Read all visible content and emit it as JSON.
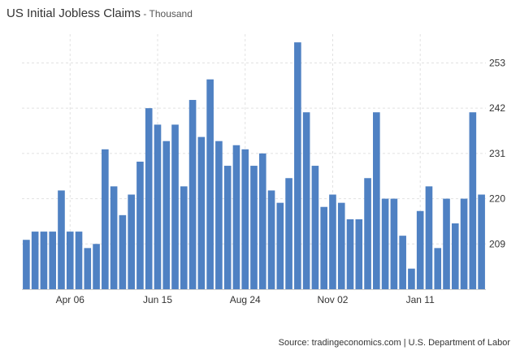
{
  "title": "US Initial Jobless Claims",
  "subtitle_sep": " - ",
  "subtitle": "Thousand",
  "source": "Source: tradingeconomics.com | U.S. Department of Labor",
  "colors": {
    "bar": "#4f81c3",
    "grid": "#e1e1e1",
    "axis": "#cccccc",
    "text": "#333333"
  },
  "chart_data": {
    "type": "bar",
    "title": "US Initial Jobless Claims",
    "ylabel": "Thousand",
    "xlabel": "",
    "ylim": [
      198,
      260
    ],
    "y_ticks": [
      209,
      220,
      231,
      242,
      253
    ],
    "y_tick_labels": [
      "209",
      "220",
      "231",
      "242",
      "253"
    ],
    "x_tick_labels": [
      {
        "label": "Apr 06",
        "index": 5
      },
      {
        "label": "Jun 15",
        "index": 15
      },
      {
        "label": "Aug 24",
        "index": 25
      },
      {
        "label": "Nov 02",
        "index": 35
      },
      {
        "label": "Jan 11",
        "index": 45
      }
    ],
    "grid": true,
    "values": [
      210,
      212,
      212,
      212,
      222,
      212,
      212,
      208,
      209,
      232,
      223,
      216,
      221,
      229,
      242,
      238,
      234,
      238,
      223,
      244,
      235,
      249,
      234,
      228,
      233,
      232,
      228,
      231,
      222,
      219,
      225,
      258,
      241,
      228,
      218,
      221,
      219,
      215,
      215,
      225,
      241,
      220,
      220,
      211,
      203,
      217,
      223,
      208,
      220,
      214,
      220,
      241,
      221
    ]
  }
}
